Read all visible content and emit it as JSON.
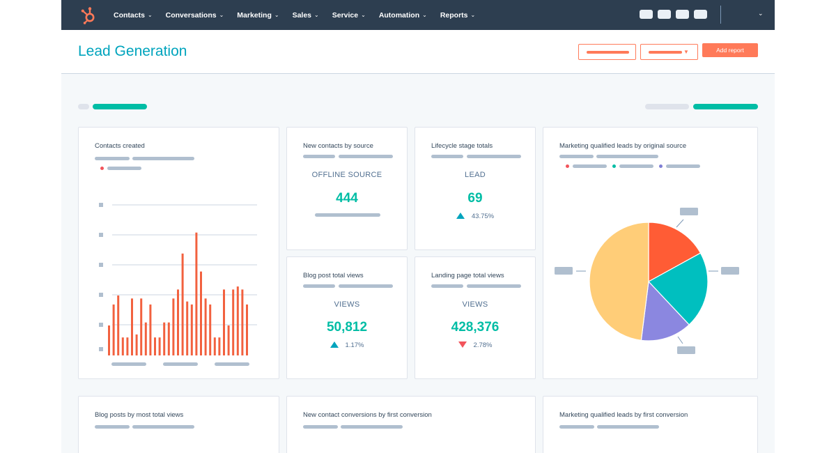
{
  "nav": {
    "items": [
      {
        "label": "Contacts"
      },
      {
        "label": "Conversations"
      },
      {
        "label": "Marketing"
      },
      {
        "label": "Sales"
      },
      {
        "label": "Service"
      },
      {
        "label": "Automation"
      },
      {
        "label": "Reports"
      }
    ],
    "chevron": "⌄"
  },
  "header": {
    "title": "Lead Generation",
    "add_report_label": "Add report"
  },
  "colors": {
    "nav_bg": "#2d3e50",
    "accent_teal": "#00a4bd",
    "kpi_green": "#00bda5",
    "brand_orange": "#ff7a59",
    "bar_orange": "#f2613f",
    "pie_orange": "#ff5c35",
    "pie_teal": "#00bfbf",
    "pie_purple": "#8b87e0",
    "pie_yellow": "#ffcd78",
    "down_red": "#f2545b"
  },
  "cards": {
    "contacts_created": {
      "title": "Contacts created"
    },
    "new_contacts_by_source": {
      "title": "New contacts by source",
      "label": "OFFLINE SOURCE",
      "value": "444"
    },
    "lifecycle_stage_totals": {
      "title": "Lifecycle stage totals",
      "label": "LEAD",
      "value": "69",
      "change": "43.75%",
      "direction": "up"
    },
    "mql_by_original_source": {
      "title": "Marketing qualified leads by original source"
    },
    "blog_post_total_views": {
      "title": "Blog post total views",
      "label": "VIEWS",
      "value": "50,812",
      "change": "1.17%",
      "direction": "up"
    },
    "landing_page_total_views": {
      "title": "Landing page total views",
      "label": "VIEWS",
      "value": "428,376",
      "change": "2.78%",
      "direction": "down"
    },
    "blog_posts_by_most_views": {
      "title": "Blog posts by most total views"
    },
    "new_contact_conversions": {
      "title": "New contact conversions by first conversion"
    },
    "mql_by_first_conversion": {
      "title": "Marketing qualified leads by first conversion"
    }
  },
  "chart_data": [
    {
      "type": "bar",
      "values": [
        10,
        17,
        20,
        6,
        6,
        19,
        7,
        19,
        11,
        17,
        6,
        6,
        11,
        11,
        19,
        22,
        34,
        18,
        17,
        41,
        28,
        19,
        17,
        6,
        6,
        22,
        10,
        22,
        23,
        22,
        17
      ],
      "ylim": [
        0,
        50
      ],
      "grid": true,
      "legend": "top-left"
    },
    {
      "type": "pie",
      "values": [
        17,
        21,
        14,
        48
      ],
      "legend": "top"
    }
  ]
}
